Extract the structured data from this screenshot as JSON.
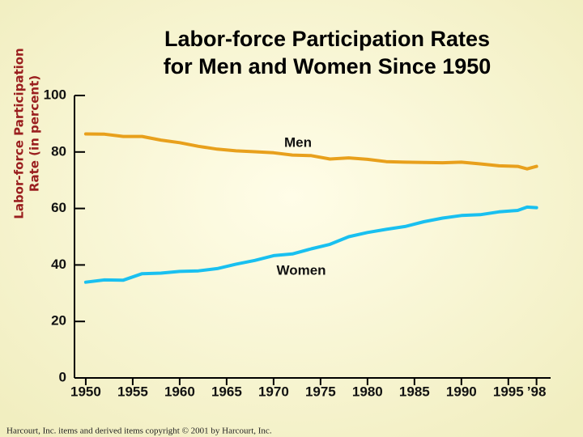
{
  "chart_data": {
    "type": "line",
    "title": [
      "Labor-force Participation Rates",
      "for Men and Women Since 1950"
    ],
    "y_label": [
      "Labor-force Participation",
      "Rate (in percent)"
    ],
    "x": [
      1950,
      1952,
      1954,
      1956,
      1958,
      1960,
      1962,
      1964,
      1966,
      1968,
      1970,
      1972,
      1974,
      1976,
      1978,
      1980,
      1982,
      1984,
      1986,
      1988,
      1990,
      1992,
      1994,
      1996,
      1997,
      1998
    ],
    "series": [
      {
        "name": "Men",
        "color": "#e8a01c",
        "values": [
          86.4,
          86.3,
          85.5,
          85.5,
          84.2,
          83.3,
          82.0,
          81.0,
          80.4,
          80.1,
          79.7,
          78.9,
          78.7,
          77.5,
          77.9,
          77.4,
          76.6,
          76.4,
          76.3,
          76.2,
          76.4,
          75.8,
          75.1,
          74.9,
          74.0,
          74.9
        ]
      },
      {
        "name": "Women",
        "color": "#19c0f0",
        "values": [
          33.9,
          34.7,
          34.6,
          36.9,
          37.1,
          37.7,
          37.9,
          38.7,
          40.3,
          41.6,
          43.3,
          43.9,
          45.7,
          47.3,
          50.0,
          51.5,
          52.6,
          53.6,
          55.3,
          56.6,
          57.5,
          57.8,
          58.8,
          59.3,
          60.5,
          60.3
        ]
      }
    ],
    "xlim": [
      1948.8,
      1999.5
    ],
    "xticks": [
      1950,
      1955,
      1960,
      1965,
      1970,
      1975,
      1980,
      1985,
      1990,
      1995,
      {
        "value": 1998,
        "label": "’98"
      }
    ],
    "ylim": [
      0,
      100
    ],
    "yticks": [
      0,
      20,
      40,
      60,
      80,
      100
    ],
    "grid": false
  },
  "footer": "Harcourt, Inc. items and derived items copyright © 2001 by Harcourt, Inc."
}
